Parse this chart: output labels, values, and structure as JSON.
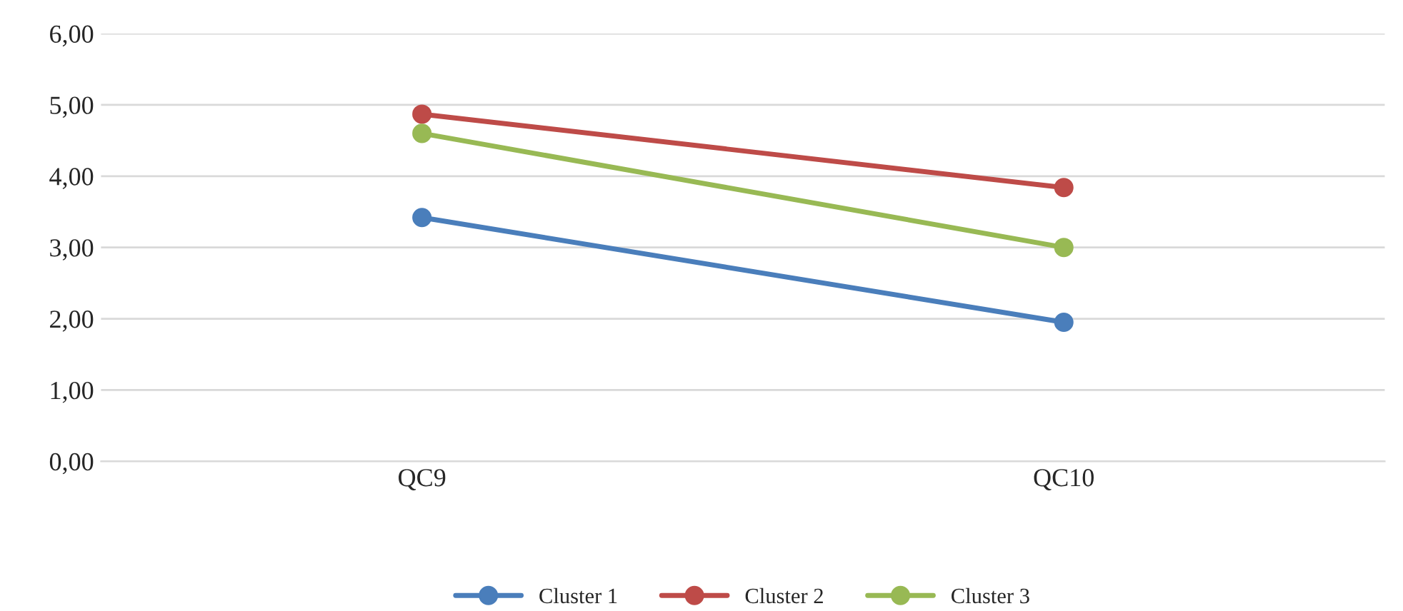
{
  "chart_data": {
    "type": "line",
    "categories": [
      "QC9",
      "QC10"
    ],
    "series": [
      {
        "name": "Cluster 1",
        "color": "#4a7ebb",
        "values": [
          3.42,
          1.95
        ]
      },
      {
        "name": "Cluster 2",
        "color": "#be4b48",
        "values": [
          4.87,
          3.84
        ]
      },
      {
        "name": "Cluster 3",
        "color": "#98b954",
        "values": [
          4.6,
          3.0
        ]
      }
    ],
    "ylim": [
      0,
      6
    ],
    "yticks": [
      {
        "value": 0,
        "label": "0,00"
      },
      {
        "value": 1,
        "label": "1,00"
      },
      {
        "value": 2,
        "label": "2,00"
      },
      {
        "value": 3,
        "label": "3,00"
      },
      {
        "value": 4,
        "label": "4,00"
      },
      {
        "value": 5,
        "label": "5,00"
      },
      {
        "value": 6,
        "label": "6,00"
      }
    ],
    "grid": "y",
    "legend": "bottom",
    "marker": "circle",
    "line_style": "solid"
  }
}
